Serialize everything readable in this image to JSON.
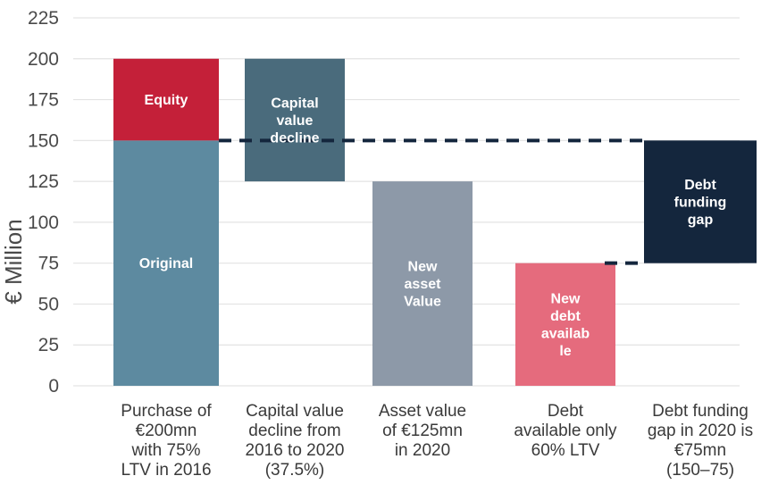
{
  "chart_data": {
    "type": "bar",
    "subtype": "waterfall",
    "title": "",
    "xlabel": "",
    "ylabel": "€ Million",
    "ylim": [
      0,
      225
    ],
    "yticks": [
      0,
      25,
      50,
      75,
      100,
      125,
      150,
      175,
      200,
      225
    ],
    "grid": true,
    "categories": [
      [
        "Purchase of",
        "€200mn",
        "with 75%",
        "LTV in 2016"
      ],
      [
        "Capital value",
        "decline from",
        "2016 to 2020",
        "(37.5%)"
      ],
      [
        "Asset value",
        "of €125mn",
        "in 2020"
      ],
      [
        "Debt",
        "available only",
        "60% LTV"
      ],
      [
        "Debt funding",
        "gap in 2020 is",
        "€75mn",
        "(150–75)"
      ]
    ],
    "segments": [
      {
        "category_index": 0,
        "label": [
          "Original"
        ],
        "base": 0,
        "top": 150,
        "color": "#5d8aa0"
      },
      {
        "category_index": 0,
        "label": [
          "Equity"
        ],
        "base": 150,
        "top": 200,
        "color": "#c42039"
      },
      {
        "category_index": 1,
        "label": [
          "Capital",
          "value",
          "decline"
        ],
        "base": 125,
        "top": 200,
        "color": "#4a6b7c"
      },
      {
        "category_index": 2,
        "label": [
          "New",
          "asset",
          "Value"
        ],
        "base": 0,
        "top": 125,
        "color": "#8d99a8"
      },
      {
        "category_index": 3,
        "label": [
          "New",
          "debt",
          "availab",
          "le"
        ],
        "base": 0,
        "top": 75,
        "color": "#e56b7d"
      },
      {
        "category_index": 4,
        "label": [
          "Debt",
          "funding",
          "gap"
        ],
        "base": 75,
        "top": 150,
        "color": "#14263d"
      }
    ],
    "reference_lines": [
      {
        "value": 150,
        "from_category": 0,
        "to_category": 4,
        "style": "dashed",
        "color": "#14263d"
      },
      {
        "value": 75,
        "from_category": 3,
        "to_category": 4,
        "style": "dashed",
        "color": "#14263d"
      }
    ],
    "colors": {
      "grid": "#e3e3e3",
      "text": "#3a3a3a"
    }
  }
}
